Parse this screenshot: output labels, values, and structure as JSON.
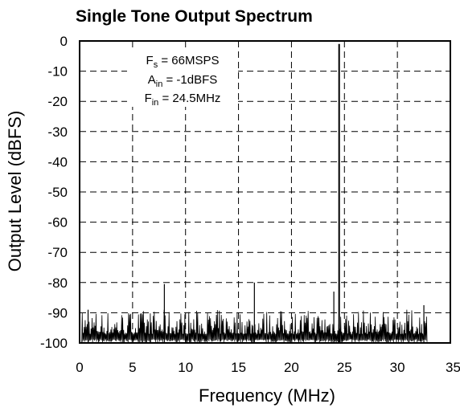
{
  "chart_data": {
    "type": "line",
    "title": "Single Tone Output Spectrum",
    "xlabel": "Frequency (MHz)",
    "ylabel": "Output Level (dBFS)",
    "xlim": [
      0,
      35
    ],
    "ylim": [
      -100,
      0
    ],
    "xticks": [
      "0",
      "5",
      "10",
      "15",
      "20",
      "25",
      "30",
      "35"
    ],
    "yticks": [
      "0",
      "-10",
      "-20",
      "-30",
      "-40",
      "-50",
      "-60",
      "-70",
      "-80",
      "-90",
      "-100"
    ],
    "grid": true,
    "annotation": {
      "line1": {
        "main": "F",
        "sub": "s",
        "rest": " = 66MSPS"
      },
      "line2": {
        "main": "A",
        "sub": "in",
        "rest": " = -1dBFS"
      },
      "line3": {
        "main": "F",
        "sub": "in",
        "rest": " = 24.5MHz"
      }
    },
    "fundamental": {
      "x": 24.5,
      "y": -1
    },
    "spurs": [
      {
        "x": 8.0,
        "y": -80.5
      },
      {
        "x": 16.5,
        "y": -80
      },
      {
        "x": 24.0,
        "y": -83
      },
      {
        "x": 0.8,
        "y": -89
      },
      {
        "x": 32.5,
        "y": -87.5
      }
    ],
    "noise_floor": {
      "x_start": 0.2,
      "x_end": 32.8,
      "y_min": -100,
      "y_typical_peak": -90
    }
  }
}
